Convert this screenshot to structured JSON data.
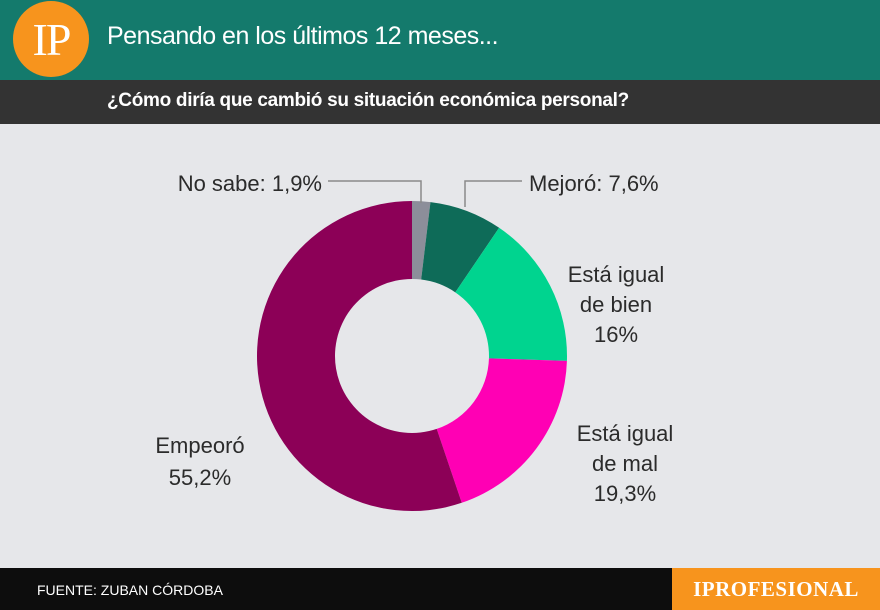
{
  "header": {
    "logo_text": "IP",
    "title": "Pensando en los últimos 12 meses...",
    "subtitle": "¿Cómo diría que cambió su situación económica personal?"
  },
  "footer": {
    "source": "FUENTE: ZUBAN CÓRDOBA",
    "brand": "IPROFESIONAL"
  },
  "colors": {
    "header_bg": "#147a6c",
    "subbar_bg": "#333333",
    "accent_orange": "#f7941d",
    "background": "#e6e7ea"
  },
  "chart_data": {
    "type": "pie",
    "style": "donut",
    "categories": [
      "No sabe",
      "Mejoró",
      "Está igual de bien",
      "Está igual de mal",
      "Empeoró"
    ],
    "values": [
      1.9,
      7.6,
      16,
      19.3,
      55.2
    ],
    "unit": "%",
    "colors": [
      "#8c8e9a",
      "#0e6b58",
      "#00d48f",
      "#ff00b4",
      "#8c0057"
    ],
    "labels": [
      {
        "lines": [
          "No sabe: 1,9%"
        ]
      },
      {
        "lines": [
          "Mejoró: 7,6%"
        ]
      },
      {
        "lines": [
          "Está igual",
          "de bien",
          "16%"
        ]
      },
      {
        "lines": [
          "Está igual",
          "de mal",
          "19,3%"
        ]
      },
      {
        "lines": [
          "Empeoró",
          "55,2%"
        ]
      }
    ]
  }
}
